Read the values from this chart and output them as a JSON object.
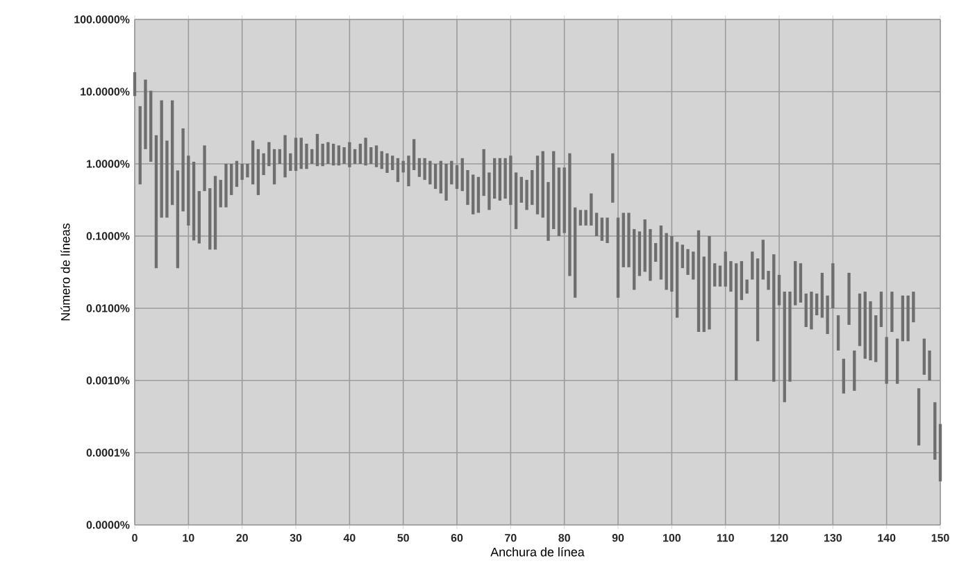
{
  "chart_data": {
    "type": "bar",
    "xlabel": "Anchura de línea",
    "ylabel": "Número de líneas",
    "log": "y",
    "grid": true,
    "color": "#6e6e6e",
    "xlim": [
      0,
      150
    ],
    "xticks": [
      0,
      10,
      20,
      30,
      40,
      50,
      60,
      70,
      80,
      90,
      100,
      110,
      120,
      130,
      140,
      150
    ],
    "ylim": [
      1e-05,
      100
    ],
    "yticks": [
      {
        "value": 1e-05,
        "label": "0.0000%"
      },
      {
        "value": 0.0001,
        "label": "0.0001%"
      },
      {
        "value": 0.001,
        "label": "0.0010%"
      },
      {
        "value": 0.01,
        "label": "0.0100%"
      },
      {
        "value": 0.1,
        "label": "0.1000%"
      },
      {
        "value": 1,
        "label": "1.0000%"
      },
      {
        "value": 10,
        "label": "10.0000%"
      },
      {
        "value": 100,
        "label": "100.0000%"
      }
    ],
    "x": [
      0,
      1,
      2,
      3,
      4,
      5,
      6,
      7,
      8,
      9,
      10,
      11,
      12,
      13,
      14,
      15,
      16,
      17,
      18,
      19,
      20,
      21,
      22,
      23,
      24,
      25,
      26,
      27,
      28,
      29,
      30,
      31,
      32,
      33,
      34,
      35,
      36,
      37,
      38,
      39,
      40,
      41,
      42,
      43,
      44,
      45,
      46,
      47,
      48,
      49,
      50,
      51,
      52,
      53,
      54,
      55,
      56,
      57,
      58,
      59,
      60,
      61,
      62,
      63,
      64,
      65,
      66,
      67,
      68,
      69,
      70,
      71,
      72,
      73,
      74,
      75,
      76,
      77,
      78,
      79,
      80,
      81,
      82,
      83,
      84,
      85,
      86,
      87,
      88,
      89,
      90,
      91,
      92,
      93,
      94,
      95,
      96,
      97,
      98,
      99,
      100,
      101,
      102,
      103,
      104,
      105,
      106,
      107,
      108,
      109,
      110,
      111,
      112,
      113,
      114,
      115,
      116,
      117,
      118,
      119,
      120,
      121,
      122,
      123,
      124,
      125,
      126,
      127,
      128,
      129,
      130,
      131,
      132,
      133,
      134,
      135,
      136,
      137,
      138,
      139,
      140,
      141,
      142,
      143,
      144,
      145,
      146,
      147,
      148,
      149,
      150
    ],
    "base": [
      8.7,
      0.52,
      1.6,
      1.07,
      0.036,
      0.18,
      0.18,
      0.27,
      0.036,
      0.22,
      0.14,
      0.087,
      0.079,
      0.42,
      0.065,
      0.065,
      0.25,
      0.25,
      0.37,
      0.48,
      0.6,
      0.65,
      0.52,
      0.37,
      0.7,
      0.93,
      0.52,
      1.0,
      0.65,
      0.8,
      0.8,
      0.85,
      0.85,
      1.0,
      0.93,
      0.93,
      1.0,
      0.95,
      0.95,
      1.0,
      0.9,
      1.0,
      1.0,
      0.95,
      1.0,
      0.9,
      0.85,
      0.75,
      0.82,
      0.56,
      0.76,
      0.49,
      0.82,
      0.66,
      0.6,
      0.52,
      0.45,
      0.39,
      0.31,
      0.52,
      0.45,
      0.42,
      0.27,
      0.2,
      0.21,
      0.36,
      0.23,
      0.33,
      0.31,
      0.33,
      0.27,
      0.125,
      0.29,
      0.23,
      0.27,
      0.2,
      0.18,
      0.086,
      0.125,
      0.1,
      0.11,
      0.028,
      0.014,
      0.14,
      0.14,
      0.14,
      0.1,
      0.086,
      0.08,
      0.29,
      0.014,
      0.037,
      0.037,
      0.018,
      0.028,
      0.032,
      0.024,
      0.044,
      0.025,
      0.018,
      0.017,
      0.0074,
      0.036,
      0.029,
      0.025,
      0.0047,
      0.0047,
      0.0051,
      0.02,
      0.02,
      0.02,
      0.017,
      0.001,
      0.013,
      0.016,
      0.025,
      0.0035,
      0.025,
      0.018,
      0.00096,
      0.011,
      0.0005,
      0.00096,
      0.011,
      0.012,
      0.0055,
      0.0051,
      0.008,
      0.0074,
      0.0044,
      0.01,
      0.0026,
      0.00066,
      0.0059,
      0.00072,
      0.003,
      0.002,
      0.0019,
      0.0018,
      0.0055,
      0.0009,
      0.0047,
      0.0009,
      0.0035,
      0.0035,
      0.0064,
      0.000126,
      0.0012,
      0.001,
      8e-05,
      4e-05
    ],
    "values": [
      9.9,
      5.78,
      13.1,
      9.23,
      2.464,
      7.42,
      1.92,
      7.33,
      0.774,
      2.88,
      1.16,
      0.983,
      0.341,
      1.38,
      0.395,
      0.615,
      0.35,
      0.75,
      0.63,
      0.62,
      0.4,
      0.35,
      1.58,
      1.23,
      0.7,
      1.07,
      1.08,
      0.6,
      1.85,
      0.6,
      1.5,
      1.45,
      1.05,
      0.6,
      1.67,
      0.97,
      1.0,
      0.95,
      0.85,
      0.7,
      1.1,
      0.6,
      0.9,
      1.35,
      0.7,
      0.9,
      0.65,
      0.65,
      0.48,
      0.64,
      0.34,
      0.81,
      1.38,
      0.54,
      0.6,
      0.58,
      0.55,
      0.71,
      0.69,
      0.58,
      0.51,
      0.78,
      0.55,
      0.51,
      0.45,
      1.24,
      0.53,
      0.87,
      0.89,
      0.87,
      1.03,
      0.635,
      0.37,
      0.37,
      0.55,
      1.1,
      1.32,
      0.474,
      1.375,
      0.79,
      0.78,
      1.372,
      0.236,
      0.09,
      0.09,
      0.25,
      0.11,
      0.094,
      0.1,
      1.11,
      0.166,
      0.173,
      0.173,
      0.107,
      0.088,
      0.138,
      0.101,
      0.036,
      0.115,
      0.092,
      0.083,
      0.0756,
      0.04,
      0.037,
      0.036,
      0.1153,
      0.0473,
      0.0949,
      0.022,
      0.019,
      0.041,
      0.028,
      0.041,
      0.032,
      0.009,
      0.036,
      0.0455,
      0.064,
      0.015,
      0.05504,
      0.018,
      0.0165,
      0.01604,
      0.034,
      0.03,
      0.0105,
      0.0119,
      0.008,
      0.0236,
      0.0106,
      0.032,
      0.0054,
      0.00134,
      0.0251,
      0.00188,
      0.013,
      0.015,
      0.0106,
      0.0062,
      0.0115,
      0.0031,
      0.0123,
      0.0029,
      0.0115,
      0.0115,
      0.0106,
      0.000654,
      0.0026,
      0.0016,
      0.00042,
      0.00021
    ]
  }
}
